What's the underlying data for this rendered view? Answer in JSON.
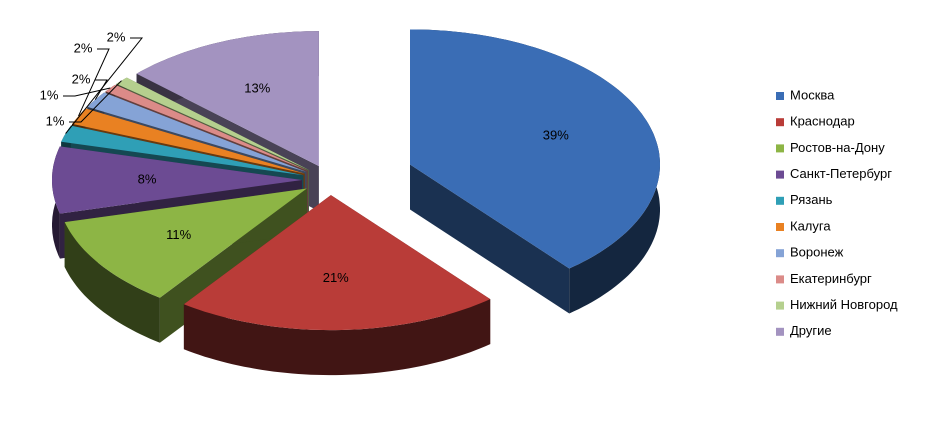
{
  "chart_data": {
    "type": "pie3d",
    "categories": [
      "Москва",
      "Краснодар",
      "Ростов-на-Дону",
      "Санкт-Петербург",
      "Рязань",
      "Калуга",
      "Воронеж",
      "Екатеринбург",
      "Нижний Новгород",
      "Другие"
    ],
    "values": [
      39,
      21,
      11,
      8,
      2,
      2,
      2,
      1,
      1,
      13
    ],
    "value_labels": [
      "39%",
      "21%",
      "11%",
      "8%",
      "2%",
      "2%",
      "2%",
      "1%",
      "1%",
      "13%"
    ],
    "colors": [
      "#3a6db5",
      "#b93c38",
      "#8db545",
      "#6c4b93",
      "#2f9fb6",
      "#e98122",
      "#85a3d6",
      "#db8b88",
      "#b5d08e",
      "#a393c0"
    ],
    "legend": "right"
  }
}
